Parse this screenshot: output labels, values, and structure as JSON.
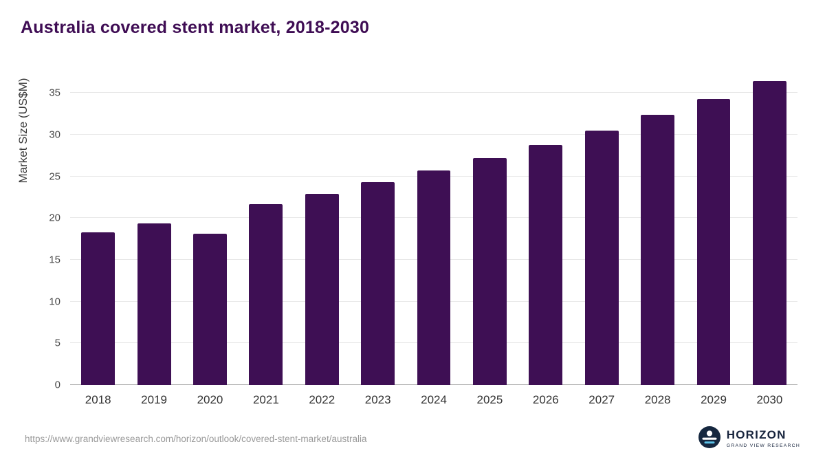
{
  "page": {
    "title": "Australia covered stent market, 2018-2030",
    "source_url": "https://www.grandviewresearch.com/horizon/outlook/covered-stent-market/australia"
  },
  "logo": {
    "name": "HORIZON",
    "subtitle": "GRAND VIEW RESEARCH",
    "icon": "horizon-circle-icon",
    "icon_bg_color": "#15273f",
    "icon_wave_color": "#5bc2e7"
  },
  "colors": {
    "title": "#3f0d54",
    "bar": "#3e0f54",
    "gridline": "#e8e8e8",
    "baseline": "#b5b5b5",
    "axis_text": "#4a4a4a",
    "source_text": "#999999"
  },
  "chart_data": {
    "type": "bar",
    "title": "Australia covered stent market, 2018-2030",
    "categories": [
      "2018",
      "2019",
      "2020",
      "2021",
      "2022",
      "2023",
      "2024",
      "2025",
      "2026",
      "2027",
      "2028",
      "2029",
      "2030"
    ],
    "values": [
      18.3,
      19.4,
      18.1,
      21.7,
      22.9,
      24.3,
      25.7,
      27.2,
      28.8,
      30.5,
      32.4,
      34.3,
      36.4
    ],
    "xlabel": "",
    "ylabel": "Market Size (US$M)",
    "ylim": [
      0,
      37.5
    ],
    "yticks": [
      0,
      5,
      10,
      15,
      20,
      25,
      30,
      35
    ],
    "grid": true,
    "legend": "none",
    "bar_color": "#3e0f54"
  }
}
